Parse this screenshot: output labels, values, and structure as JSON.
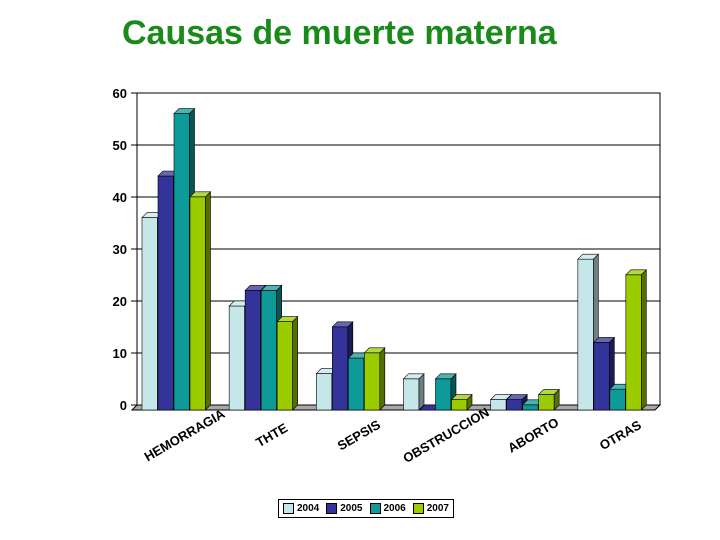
{
  "chart_data": {
    "type": "bar",
    "title": "Causas de muerte materna",
    "categories": [
      "HEMORRAGIA",
      "THTE",
      "SEPSIS",
      "OBSTRUCCION",
      "ABORTO",
      "OTRAS"
    ],
    "series": [
      {
        "name": "2004",
        "color": "#c6e7ea",
        "values": [
          37,
          20,
          7,
          6,
          2,
          29
        ]
      },
      {
        "name": "2005",
        "color": "#33339a",
        "values": [
          45,
          23,
          16,
          0,
          2,
          13
        ]
      },
      {
        "name": "2006",
        "color": "#0f9a9a",
        "values": [
          57,
          23,
          10,
          6,
          1,
          4
        ]
      },
      {
        "name": "2007",
        "color": "#9acc00",
        "values": [
          41,
          17,
          11,
          2,
          3,
          26
        ]
      }
    ],
    "ylim": [
      0,
      60
    ],
    "yticks": [
      "0",
      "10",
      "20",
      "30",
      "40",
      "50",
      "60"
    ],
    "grid": true,
    "legend_position": "bottom"
  }
}
